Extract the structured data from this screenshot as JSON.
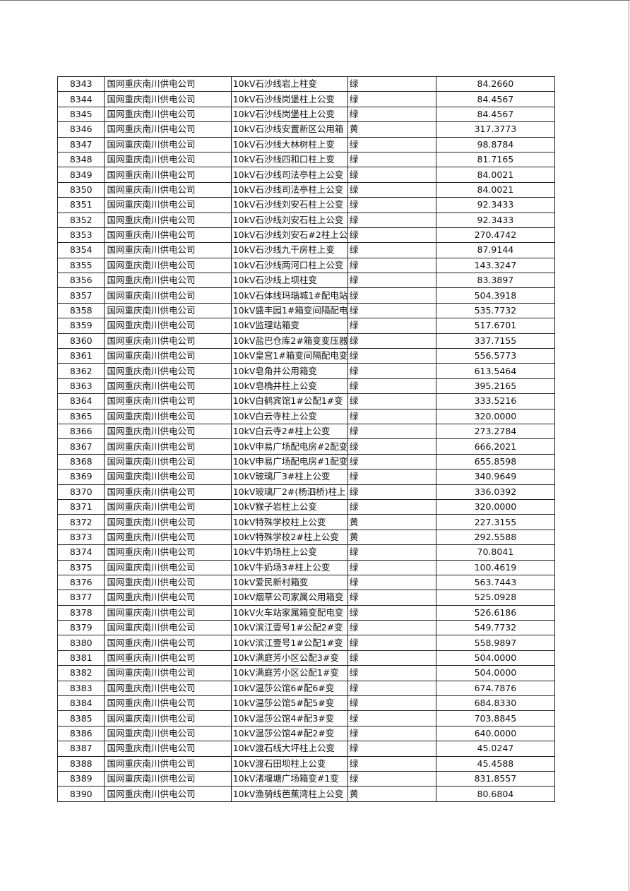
{
  "table": {
    "rows": [
      [
        "8343",
        "国网重庆南川供电公司",
        "10kV石沙线岩上柱变",
        "绿",
        "84.2660"
      ],
      [
        "8344",
        "国网重庆南川供电公司",
        "10kV石沙线岗堡柱上公变",
        "绿",
        "84.4567"
      ],
      [
        "8345",
        "国网重庆南川供电公司",
        "10kV石沙线岗堡柱上公变",
        "绿",
        "84.4567"
      ],
      [
        "8346",
        "国网重庆南川供电公司",
        "10kV石沙线安置新区公用箱",
        "黄",
        "317.3773"
      ],
      [
        "8347",
        "国网重庆南川供电公司",
        "10kV石沙线大林树柱上变",
        "绿",
        "98.8784"
      ],
      [
        "8348",
        "国网重庆南川供电公司",
        "10kV石沙线四和口柱上变",
        "绿",
        "81.7165"
      ],
      [
        "8349",
        "国网重庆南川供电公司",
        "10kV石沙线司法亭柱上公变",
        "绿",
        "84.0021"
      ],
      [
        "8350",
        "国网重庆南川供电公司",
        "10kV石沙线司法亭柱上公变",
        "绿",
        "84.0021"
      ],
      [
        "8351",
        "国网重庆南川供电公司",
        "10kV石沙线刘安石柱上公变",
        "绿",
        "92.3433"
      ],
      [
        "8352",
        "国网重庆南川供电公司",
        "10kV石沙线刘安石柱上公变",
        "绿",
        "92.3433"
      ],
      [
        "8353",
        "国网重庆南川供电公司",
        "10kV石沙线刘安石#2柱上公",
        "绿",
        "270.4742"
      ],
      [
        "8354",
        "国网重庆南川供电公司",
        "10kV石沙线九干房柱上变",
        "绿",
        "87.9144"
      ],
      [
        "8355",
        "国网重庆南川供电公司",
        "10kV石沙线两河口柱上公变",
        "绿",
        "143.3247"
      ],
      [
        "8356",
        "国网重庆南川供电公司",
        "10kV石沙线上坝柱变",
        "绿",
        "83.3897"
      ],
      [
        "8357",
        "国网重庆南川供电公司",
        "10kV石体线玛瑙城1#配电站",
        "绿",
        "504.3918"
      ],
      [
        "8358",
        "国网重庆南川供电公司",
        "10kV盛丰园1#箱变间隔配电",
        "绿",
        "535.7732"
      ],
      [
        "8359",
        "国网重庆南川供电公司",
        "10kV监理站箱变",
        "绿",
        "517.6701"
      ],
      [
        "8360",
        "国网重庆南川供电公司",
        "10kV盐巴仓库2#箱变变压器",
        "绿",
        "337.7155"
      ],
      [
        "8361",
        "国网重庆南川供电公司",
        "10kV皇宫1#箱变间隔配电变",
        "绿",
        "556.5773"
      ],
      [
        "8362",
        "国网重庆南川供电公司",
        "10kV皂角井公用箱变",
        "绿",
        "613.5464"
      ],
      [
        "8363",
        "国网重庆南川供电公司",
        "10kV皂桷井柱上公变",
        "绿",
        "395.2165"
      ],
      [
        "8364",
        "国网重庆南川供电公司",
        "10kV白鹤宾馆1#公配1#变",
        "绿",
        "333.5216"
      ],
      [
        "8365",
        "国网重庆南川供电公司",
        "10kV白云寺柱上公变",
        "绿",
        "320.0000"
      ],
      [
        "8366",
        "国网重庆南川供电公司",
        "10kV白云寺2#柱上公变",
        "绿",
        "273.2784"
      ],
      [
        "8367",
        "国网重庆南川供电公司",
        "10kV申易广场配电房#2配变",
        "绿",
        "666.2021"
      ],
      [
        "8368",
        "国网重庆南川供电公司",
        "10kV申易广场配电房#1配变",
        "绿",
        "655.8598"
      ],
      [
        "8369",
        "国网重庆南川供电公司",
        "10kV玻璃厂3#柱上公变",
        "绿",
        "340.9649"
      ],
      [
        "8370",
        "国网重庆南川供电公司",
        "10kV玻璃厂2#(杨泗桥)柱上",
        "绿",
        "336.0392"
      ],
      [
        "8371",
        "国网重庆南川供电公司",
        "10kV猴子岩柱上公变",
        "绿",
        "320.0000"
      ],
      [
        "8372",
        "国网重庆南川供电公司",
        "10kV特殊学校柱上公变",
        "黄",
        "227.3155"
      ],
      [
        "8373",
        "国网重庆南川供电公司",
        "10kV特殊学校2#柱上公变",
        "黄",
        "292.5588"
      ],
      [
        "8374",
        "国网重庆南川供电公司",
        "10kV牛奶场柱上公变",
        "绿",
        "70.8041"
      ],
      [
        "8375",
        "国网重庆南川供电公司",
        "10kV牛奶场3#柱上公变",
        "绿",
        "100.4619"
      ],
      [
        "8376",
        "国网重庆南川供电公司",
        "10kV爱民新村箱变",
        "绿",
        "563.7443"
      ],
      [
        "8377",
        "国网重庆南川供电公司",
        "10kV烟草公司家属公用箱变",
        "绿",
        "525.0928"
      ],
      [
        "8378",
        "国网重庆南川供电公司",
        "10kV火车站家属箱变配电变",
        "绿",
        "526.6186"
      ],
      [
        "8379",
        "国网重庆南川供电公司",
        "10kV滨江壹号1#公配2#变",
        "绿",
        "549.7732"
      ],
      [
        "8380",
        "国网重庆南川供电公司",
        "10kV滨江壹号1#公配1#变",
        "绿",
        "558.9897"
      ],
      [
        "8381",
        "国网重庆南川供电公司",
        "10kV满庭芳小区公配3#变",
        "绿",
        "504.0000"
      ],
      [
        "8382",
        "国网重庆南川供电公司",
        "10kV满庭芳小区公配1#变",
        "绿",
        "504.0000"
      ],
      [
        "8383",
        "国网重庆南川供电公司",
        "10kV温莎公馆6#配6#变",
        "绿",
        "674.7876"
      ],
      [
        "8384",
        "国网重庆南川供电公司",
        "10kV温莎公馆5#配5#变",
        "绿",
        "684.8330"
      ],
      [
        "8385",
        "国网重庆南川供电公司",
        "10kV温莎公馆4#配3#变",
        "绿",
        "703.8845"
      ],
      [
        "8386",
        "国网重庆南川供电公司",
        "10kV温莎公馆4#配2#变",
        "绿",
        "640.0000"
      ],
      [
        "8387",
        "国网重庆南川供电公司",
        "10kV渡石线大坪柱上公变",
        "绿",
        "45.0247"
      ],
      [
        "8388",
        "国网重庆南川供电公司",
        "10kV渡石田坝柱上公变",
        "绿",
        "45.4588"
      ],
      [
        "8389",
        "国网重庆南川供电公司",
        "10kV渚堰塘广场箱变#1变",
        "绿",
        "831.8557"
      ],
      [
        "8390",
        "国网重庆南川供电公司",
        "10kV渔骑线芭蕉湾柱上公变",
        "黄",
        "80.6804"
      ]
    ]
  }
}
